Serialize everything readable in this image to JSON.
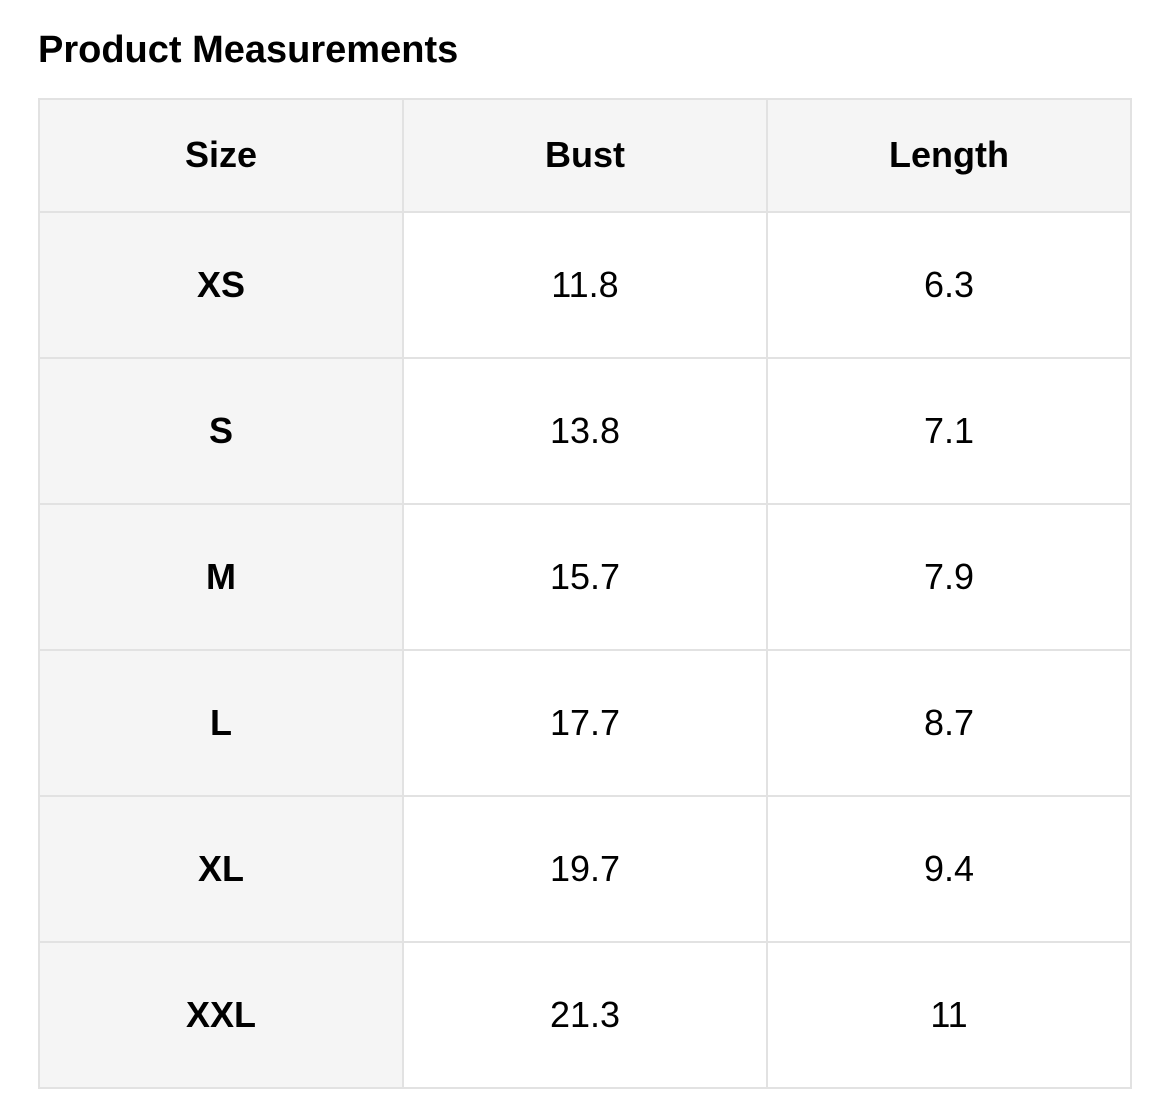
{
  "page": {
    "title": "Product Measurements"
  },
  "colors": {
    "background": "#ffffff",
    "cell_highlight_bg": "#f5f5f5",
    "border": "#e2e2e2",
    "text": "#000000"
  },
  "table": {
    "columns": [
      "Size",
      "Bust",
      "Length"
    ],
    "rows": [
      {
        "size": "XS",
        "bust": "11.8",
        "length": "6.3"
      },
      {
        "size": "S",
        "bust": "13.8",
        "length": "7.1"
      },
      {
        "size": "M",
        "bust": "15.7",
        "length": "7.9"
      },
      {
        "size": "L",
        "bust": "17.7",
        "length": "8.7"
      },
      {
        "size": "XL",
        "bust": "19.7",
        "length": "9.4"
      },
      {
        "size": "XXL",
        "bust": "21.3",
        "length": "11"
      }
    ]
  }
}
